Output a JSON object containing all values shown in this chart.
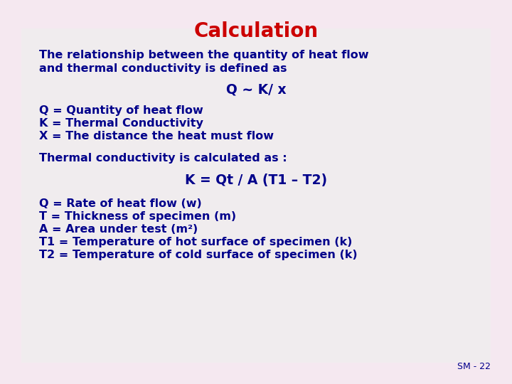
{
  "title": "Calculation",
  "title_color": "#cc0000",
  "title_fontsize": 20,
  "text_color": "#00008B",
  "bg_color": "#f5e8f0",
  "footer": "SM - 22",
  "line1": "The relationship between the quantity of heat flow",
  "line2": "and thermal conductivity is defined as",
  "formula1": "Q ~ K/ x",
  "line3": "Q = Quantity of heat flow",
  "line4": "K = Thermal Conductivity",
  "line5": "X = The distance the heat must flow",
  "line6": "Thermal conductivity is calculated as :",
  "formula2": "K = Qt / A (T1 – T2)",
  "line7": "Q = Rate of heat flow (w)",
  "line8": "T = Thickness of specimen (m)",
  "line9": "A = Area under test (m²)",
  "line10": "T1 = Temperature of hot surface of specimen (k)",
  "line11": "T2 = Temperature of cold surface of specimen (k)",
  "body_fontsize": 11.5,
  "formula_fontsize": 13.5
}
